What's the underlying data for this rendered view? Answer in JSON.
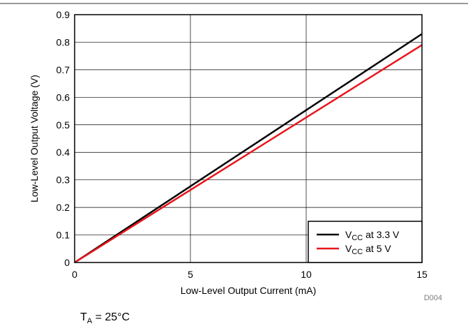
{
  "chart_data": {
    "type": "line",
    "title": "",
    "xlabel": "Low-Level Output Current (mA)",
    "ylabel": "Low-Level Output Voltage (V)",
    "xlim": [
      0,
      15
    ],
    "ylim": [
      0,
      0.9
    ],
    "xticks": [
      0,
      5,
      10,
      15
    ],
    "yticks": [
      0,
      0.1,
      0.2,
      0.3,
      0.4,
      0.5,
      0.6,
      0.7,
      0.8,
      0.9
    ],
    "grid": true,
    "legend_position": "bottom-right",
    "series": [
      {
        "legend": {
          "v": "V",
          "sub": "CC",
          "rest": " at 3.3 V"
        },
        "color": "#000000",
        "x": [
          0,
          15
        ],
        "y": [
          0,
          0.83
        ]
      },
      {
        "legend": {
          "v": "V",
          "sub": "CC",
          "rest": " at 5 V"
        },
        "color": "#e8141c",
        "x": [
          0,
          15
        ],
        "y": [
          0,
          0.79
        ]
      }
    ],
    "figure_id": "D004",
    "condition": {
      "t": "T",
      "sub": "A",
      "rest": " = 25°C"
    }
  }
}
